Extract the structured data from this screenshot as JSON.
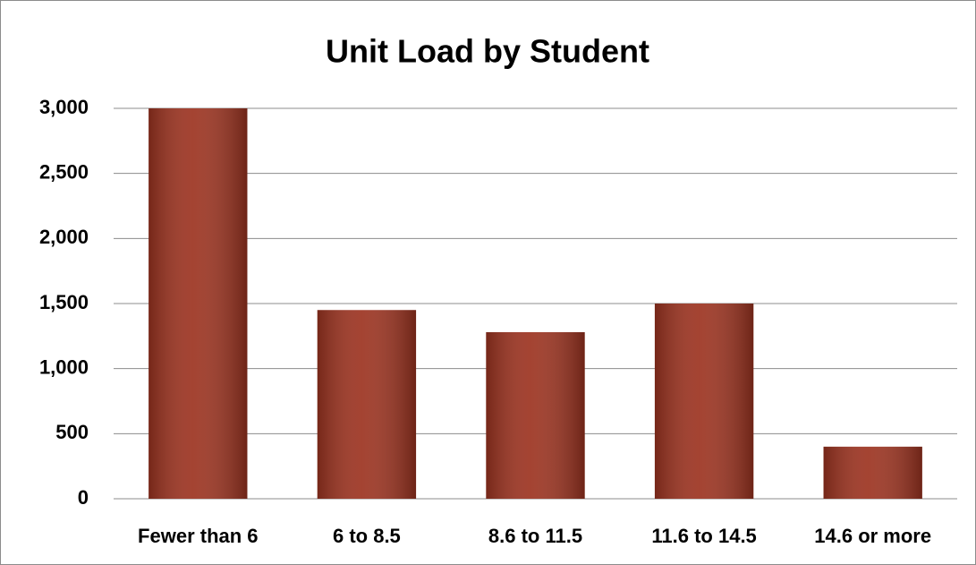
{
  "chart_data": {
    "type": "bar",
    "title": "Unit Load by Student",
    "categories": [
      "Fewer than 6",
      "6 to 8.5",
      "8.6 to 11.5",
      "11.6 to 14.5",
      "14.6 or more"
    ],
    "values": [
      3000,
      1450,
      1280,
      1500,
      400
    ],
    "color": "#9c3320",
    "ylim": [
      0,
      3000
    ],
    "yticks": [
      0,
      500,
      {
        "value": 1000,
        "label": "1,000"
      },
      {
        "value": 1500,
        "label": "1,500"
      },
      {
        "value": 2000,
        "label": "2,000"
      },
      {
        "value": 2500,
        "label": "2,500"
      },
      {
        "value": 3000,
        "label": "3,000"
      }
    ],
    "grid": true
  }
}
